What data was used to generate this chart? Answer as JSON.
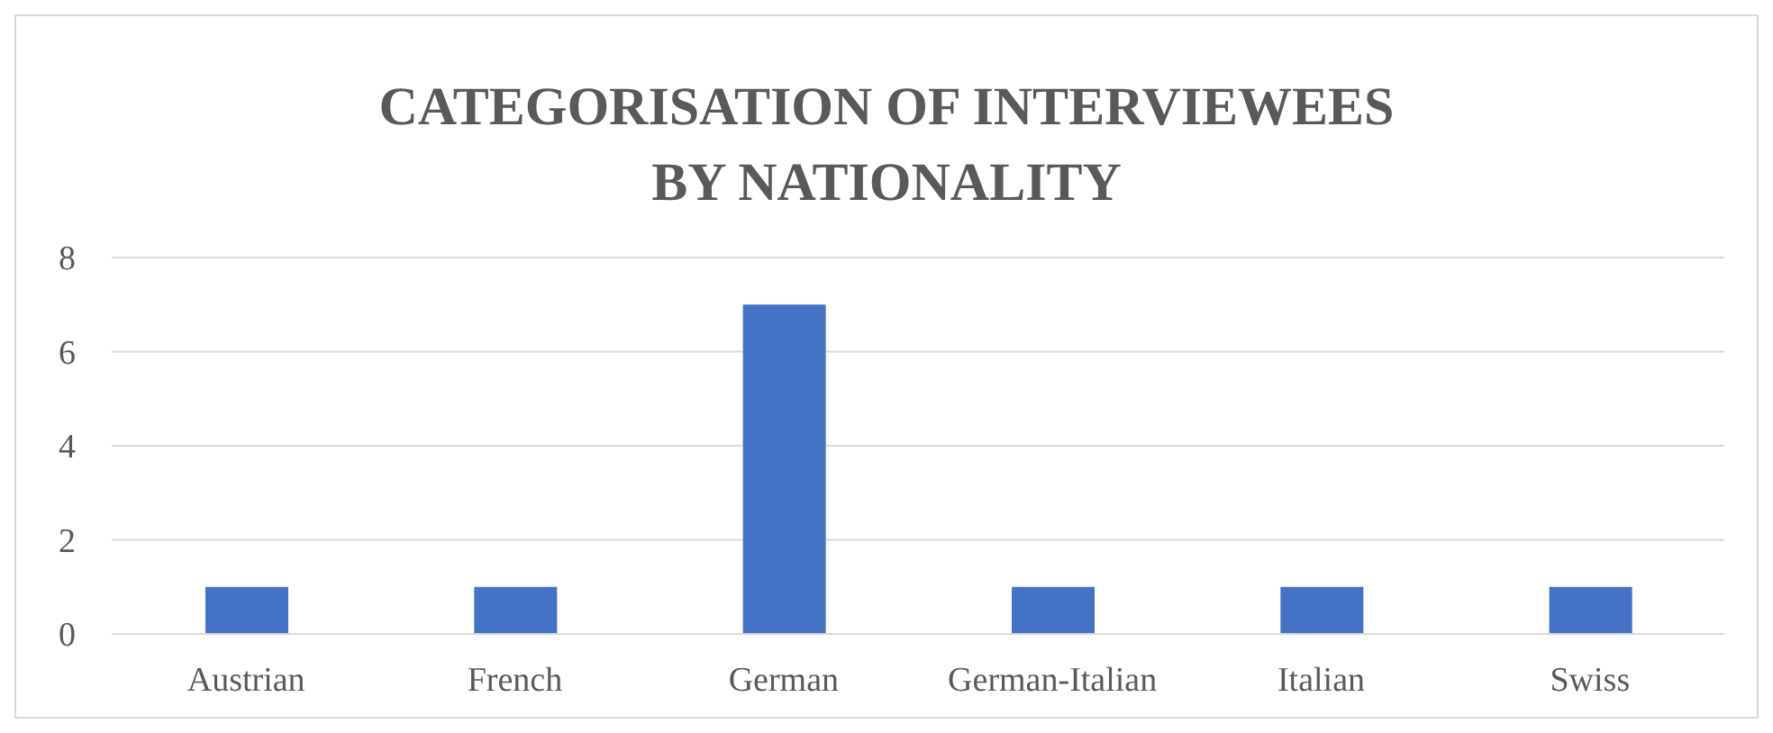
{
  "chart_data": {
    "type": "bar",
    "title": "CATEGORISATION OF INTERVIEWEES BY NATIONALITY",
    "categories": [
      "Austrian",
      "French",
      "German",
      "German-Italian",
      "Italian",
      "Swiss"
    ],
    "values": [
      1,
      1,
      7,
      1,
      1,
      1
    ],
    "color": "#4472c4",
    "ylim": [
      0,
      8
    ],
    "yticks": [
      0,
      2,
      4,
      6,
      8
    ],
    "grid": "y"
  }
}
